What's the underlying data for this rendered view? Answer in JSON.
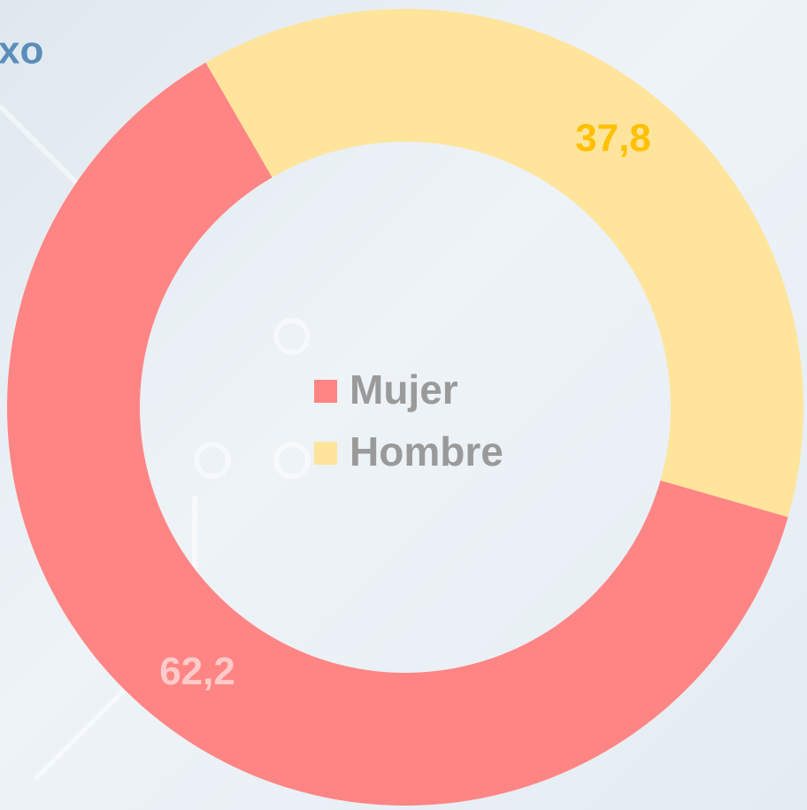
{
  "chart_data": {
    "type": "donut",
    "title": "xo",
    "categories": [
      "Mujer",
      "Hombre"
    ],
    "values": [
      62.2,
      37.8
    ],
    "value_labels": [
      "62,2",
      "37,8"
    ],
    "colors": [
      "#ff8585",
      "#ffe49c"
    ],
    "label_colors": [
      "#ffcaca",
      "#ffc000"
    ]
  }
}
